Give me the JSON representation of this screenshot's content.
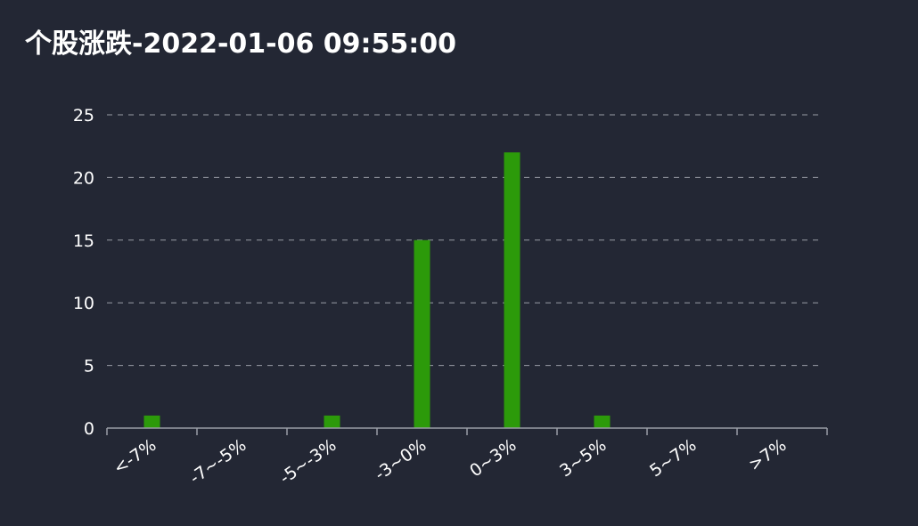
{
  "chart_data": {
    "type": "bar",
    "title": "个股涨跌-2022-01-06 09:55:00",
    "categories": [
      "<-7%",
      "-7~-5%",
      "-5~-3%",
      "-3~0%",
      "0~3%",
      "3~5%",
      "5~7%",
      ">7%"
    ],
    "values": [
      1,
      0,
      1,
      15,
      22,
      1,
      0,
      0
    ],
    "ylim": [
      0,
      25
    ],
    "yticks": [
      0,
      5,
      10,
      15,
      20,
      25
    ],
    "xlabel": "",
    "ylabel": "",
    "grid": true,
    "legend": "none",
    "colors": {
      "bar": "#2c9a0a",
      "background": "#232734",
      "text": "#ffffff",
      "grid": "#9a9da6"
    }
  }
}
